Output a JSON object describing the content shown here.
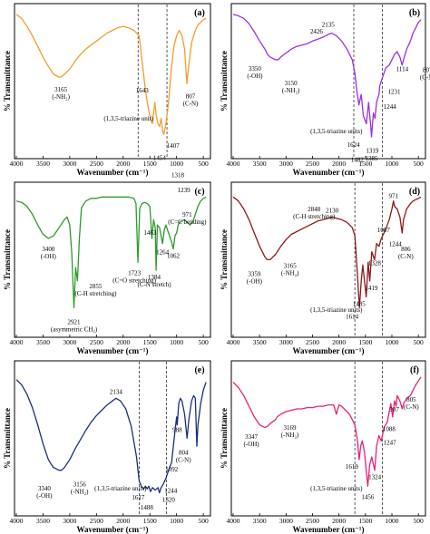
{
  "figure": {
    "xlabel": "Wavenumber (cm⁻¹)",
    "ylabel": "% Transmittance"
  },
  "chart_data": [
    {
      "type": "line",
      "panel": "(a)",
      "color": "#f39c2f",
      "xlabel": "Wavenumber (cm⁻¹)",
      "ylabel": "% Transmittance",
      "xlim": [
        4000,
        400
      ],
      "xticks": [
        4000,
        3500,
        3000,
        2500,
        2000,
        1500,
        1000,
        500
      ],
      "dashed_lines": [
        1720,
        1180
      ],
      "x": [
        4000,
        3900,
        3800,
        3700,
        3600,
        3500,
        3400,
        3300,
        3200,
        3165,
        3100,
        3000,
        2900,
        2800,
        2700,
        2600,
        2500,
        2400,
        2300,
        2200,
        2100,
        2000,
        1900,
        1800,
        1700,
        1643,
        1600,
        1550,
        1500,
        1454,
        1430,
        1407,
        1380,
        1350,
        1318,
        1290,
        1260,
        1239,
        1200,
        1150,
        1100,
        1050,
        1000,
        950,
        900,
        850,
        807,
        780,
        720,
        650,
        600,
        550,
        500,
        450
      ],
      "y": [
        96,
        93,
        87,
        80,
        72,
        64,
        57,
        51,
        49,
        49,
        51,
        55,
        61,
        66,
        70,
        73,
        76,
        79,
        82,
        84,
        86,
        87,
        86,
        84,
        80,
        60,
        45,
        30,
        20,
        14,
        22,
        30,
        20,
        14,
        12,
        18,
        8,
        6,
        14,
        30,
        55,
        72,
        80,
        84,
        80,
        70,
        44,
        55,
        75,
        84,
        88,
        90,
        92,
        93
      ],
      "peaks": [
        {
          "label": "3165\n(-NH₂)",
          "x": 3165
        },
        {
          "label": "1643",
          "x": 1643
        },
        {
          "label": "1454",
          "x": 1454
        },
        {
          "label": "1407",
          "x": 1407
        },
        {
          "label": "1318",
          "x": 1318
        },
        {
          "label": "1239",
          "x": 1239
        },
        {
          "label": "807\n(C-N)",
          "x": 807
        }
      ],
      "annotations": [
        "(1,3,5-triazine unit)"
      ]
    },
    {
      "type": "line",
      "panel": "(b)",
      "color": "#9b30e0",
      "xlabel": "Wavenumber (cm⁻¹)",
      "ylabel": "% Transmittance",
      "xlim": [
        4000,
        400
      ],
      "xticks": [
        4000,
        3500,
        3000,
        2500,
        2000,
        1500,
        1000,
        500
      ],
      "dashed_lines": [
        1720,
        1180
      ],
      "x": [
        4000,
        3900,
        3800,
        3700,
        3600,
        3500,
        3400,
        3350,
        3300,
        3200,
        3150,
        3100,
        3000,
        2900,
        2800,
        2700,
        2600,
        2500,
        2426,
        2300,
        2200,
        2135,
        2050,
        1950,
        1850,
        1750,
        1700,
        1660,
        1624,
        1580,
        1540,
        1482,
        1440,
        1400,
        1385,
        1350,
        1319,
        1290,
        1244,
        1231,
        1200,
        1150,
        1114,
        1050,
        1000,
        950,
        900,
        850,
        807,
        780,
        720,
        650,
        600,
        550,
        500,
        450
      ],
      "y": [
        96,
        95,
        93,
        89,
        83,
        76,
        70,
        66,
        64,
        62,
        62,
        64,
        67,
        70,
        72,
        73,
        74,
        76,
        77,
        79,
        81,
        82,
        80,
        76,
        70,
        62,
        52,
        38,
        28,
        36,
        20,
        14,
        30,
        12,
        4,
        22,
        18,
        30,
        36,
        42,
        46,
        52,
        56,
        58,
        62,
        66,
        68,
        64,
        58,
        62,
        70,
        76,
        82,
        86,
        90,
        92
      ],
      "peaks": [
        {
          "label": "3350\n(-OH)",
          "x": 3350
        },
        {
          "label": "3150\n(-NH₂)",
          "x": 3150
        },
        {
          "label": "2426",
          "x": 2426
        },
        {
          "label": "2135",
          "x": 2135
        },
        {
          "label": "1624",
          "x": 1624
        },
        {
          "label": "1482",
          "x": 1482
        },
        {
          "label": "1385",
          "x": 1385
        },
        {
          "label": "1319",
          "x": 1319
        },
        {
          "label": "1244",
          "x": 1244
        },
        {
          "label": "1231",
          "x": 1231
        },
        {
          "label": "1114",
          "x": 1114
        },
        {
          "label": "807\n(C-N)",
          "x": 807
        }
      ],
      "annotations": [
        "(1,3,5-triazine units)"
      ]
    },
    {
      "type": "line",
      "panel": "(c)",
      "color": "#2e9a2e",
      "xlabel": "Wavenumber (cm⁻¹)",
      "ylabel": "% Transmittance",
      "xlim": [
        4000,
        400
      ],
      "xticks": [
        4000,
        3500,
        3000,
        2500,
        2000,
        1500,
        1000,
        500
      ],
      "dashed_lines": [],
      "x": [
        4000,
        3900,
        3800,
        3700,
        3600,
        3500,
        3400,
        3300,
        3200,
        3100,
        3050,
        3000,
        2960,
        2921,
        2890,
        2855,
        2820,
        2780,
        2700,
        2600,
        2500,
        2400,
        2300,
        2200,
        2100,
        2000,
        1900,
        1800,
        1760,
        1723,
        1690,
        1650,
        1600,
        1550,
        1500,
        1463,
        1430,
        1400,
        1384,
        1360,
        1320,
        1300,
        1264,
        1230,
        1200,
        1150,
        1100,
        1062,
        1030,
        1000,
        971,
        940,
        900,
        850,
        800,
        750,
        700,
        650,
        600,
        550,
        500,
        450
      ],
      "y": [
        90,
        89,
        86,
        80,
        72,
        65,
        62,
        64,
        70,
        76,
        78,
        72,
        50,
        10,
        40,
        30,
        62,
        85,
        90,
        92,
        92,
        93,
        93,
        93,
        93,
        93,
        93,
        92,
        88,
        44,
        84,
        88,
        89,
        88,
        86,
        62,
        76,
        70,
        38,
        72,
        70,
        66,
        58,
        68,
        72,
        66,
        60,
        54,
        64,
        66,
        72,
        74,
        75,
        76,
        74,
        72,
        74,
        80,
        86,
        90,
        92,
        93
      ],
      "peaks": [
        {
          "label": "3400\n(-OH)",
          "x": 3400
        },
        {
          "label": "2921\n(asymmetric CH₂)",
          "x": 2921
        },
        {
          "label": "2855\n(C-H stretching)",
          "x": 2855
        },
        {
          "label": "1723\n(C=O stretching)",
          "x": 1723
        },
        {
          "label": "1463",
          "x": 1463
        },
        {
          "label": "1384\n(C-N stretch)",
          "x": 1384
        },
        {
          "label": "1264",
          "x": 1264
        },
        {
          "label": "1062",
          "x": 1062
        },
        {
          "label": "971\n(C=C bending)",
          "x": 971
        }
      ],
      "annotations": []
    },
    {
      "type": "line",
      "panel": "(d)",
      "color": "#8b1a1a",
      "xlabel": "Wavenumber (cm⁻¹)",
      "ylabel": "% Transmittance",
      "xlim": [
        4000,
        400
      ],
      "xticks": [
        4000,
        3500,
        3000,
        2500,
        2000,
        1500,
        1000,
        500
      ],
      "dashed_lines": [
        1700,
        1180
      ],
      "x": [
        4000,
        3900,
        3800,
        3700,
        3600,
        3500,
        3400,
        3359,
        3300,
        3200,
        3165,
        3100,
        3000,
        2900,
        2848,
        2800,
        2700,
        2600,
        2500,
        2400,
        2300,
        2200,
        2130,
        2050,
        1950,
        1850,
        1750,
        1700,
        1660,
        1614,
        1580,
        1550,
        1485,
        1450,
        1419,
        1380,
        1328,
        1290,
        1244,
        1200,
        1150,
        1087,
        1050,
        1000,
        971,
        950,
        900,
        850,
        806,
        780,
        720,
        650,
        600,
        550,
        500,
        450
      ],
      "y": [
        93,
        90,
        84,
        76,
        66,
        56,
        48,
        46,
        46,
        50,
        52,
        56,
        61,
        65,
        66,
        67,
        69,
        71,
        73,
        75,
        76,
        77,
        78,
        77,
        76,
        74,
        70,
        64,
        40,
        10,
        30,
        42,
        18,
        44,
        30,
        52,
        46,
        58,
        56,
        62,
        66,
        72,
        76,
        84,
        90,
        86,
        84,
        78,
        66,
        76,
        84,
        88,
        90,
        91,
        92,
        93
      ],
      "peaks": [
        {
          "label": "3359\n(-OH)",
          "x": 3359
        },
        {
          "label": "3165\n(-NH₂)",
          "x": 3165
        },
        {
          "label": "2848\n(C-H stretching)",
          "x": 2848
        },
        {
          "label": "2130",
          "x": 2130
        },
        {
          "label": "1614",
          "x": 1614
        },
        {
          "label": "1485",
          "x": 1485
        },
        {
          "label": "1419",
          "x": 1419
        },
        {
          "label": "1328",
          "x": 1328
        },
        {
          "label": "1244",
          "x": 1244
        },
        {
          "label": "1087",
          "x": 1087
        },
        {
          "label": "971",
          "x": 971
        },
        {
          "label": "806\n(C-N)",
          "x": 806
        }
      ],
      "annotations": [
        "(1,3,5-triazine units)"
      ]
    },
    {
      "type": "line",
      "panel": "(e)",
      "color": "#1c2f7a",
      "xlabel": "Wavenumber (cm⁻¹)",
      "ylabel": "% Transmittance",
      "xlim": [
        4000,
        400
      ],
      "xticks": [
        4000,
        3500,
        3000,
        2500,
        2000,
        1500,
        1000,
        500
      ],
      "dashed_lines": [
        1700,
        1190
      ],
      "x": [
        4000,
        3900,
        3800,
        3700,
        3600,
        3500,
        3400,
        3340,
        3300,
        3200,
        3156,
        3100,
        3000,
        2900,
        2800,
        2700,
        2600,
        2500,
        2400,
        2300,
        2200,
        2134,
        2050,
        1950,
        1850,
        1750,
        1700,
        1660,
        1617,
        1580,
        1550,
        1520,
        1488,
        1450,
        1400,
        1350,
        1320,
        1290,
        1244,
        1200,
        1150,
        1092,
        1050,
        1000,
        988,
        960,
        930,
        900,
        850,
        804,
        770,
        720,
        680,
        650,
        620,
        600,
        550,
        500,
        450
      ],
      "y": [
        90,
        86,
        79,
        69,
        56,
        42,
        30,
        26,
        24,
        22,
        22,
        24,
        30,
        38,
        45,
        52,
        58,
        63,
        67,
        71,
        74,
        76,
        74,
        68,
        55,
        32,
        14,
        10,
        8,
        10,
        8,
        10,
        6,
        9,
        7,
        9,
        5,
        9,
        12,
        16,
        22,
        28,
        44,
        62,
        56,
        72,
        76,
        74,
        64,
        46,
        60,
        74,
        78,
        76,
        40,
        56,
        72,
        82,
        88
      ],
      "peaks": [
        {
          "label": "3340\n(-OH)",
          "x": 3340
        },
        {
          "label": "3156\n(-NH₂)",
          "x": 3156
        },
        {
          "label": "2134",
          "x": 2134
        },
        {
          "label": "1617",
          "x": 1617
        },
        {
          "label": "1488",
          "x": 1488
        },
        {
          "label": "1320",
          "x": 1320
        },
        {
          "label": "1244",
          "x": 1244
        },
        {
          "label": "1092",
          "x": 1092
        },
        {
          "label": "988",
          "x": 988
        },
        {
          "label": "804\n(C-N)",
          "x": 804
        }
      ],
      "annotations": [
        "(1,3,5-triazine units)"
      ]
    },
    {
      "type": "line",
      "panel": "(f)",
      "color": "#e8207a",
      "xlabel": "Wavenumber (cm⁻¹)",
      "ylabel": "% Transmittance",
      "xlim": [
        4000,
        400
      ],
      "xticks": [
        4000,
        3500,
        3000,
        2500,
        2000,
        1500,
        1000,
        500
      ],
      "dashed_lines": [
        1700,
        1180
      ],
      "x": [
        4000,
        3900,
        3800,
        3700,
        3600,
        3500,
        3400,
        3347,
        3300,
        3200,
        3169,
        3100,
        3000,
        2900,
        2800,
        2700,
        2600,
        2500,
        2400,
        2300,
        2200,
        2100,
        2050,
        2000,
        1950,
        1900,
        1850,
        1800,
        1750,
        1700,
        1650,
        1619,
        1590,
        1560,
        1520,
        1456,
        1420,
        1380,
        1324,
        1290,
        1247,
        1200,
        1150,
        1088,
        1050,
        1020,
        987,
        950,
        920,
        900,
        850,
        805,
        780,
        720,
        650,
        600,
        550,
        500,
        450
      ],
      "y": [
        88,
        84,
        78,
        70,
        62,
        56,
        54,
        55,
        57,
        60,
        62,
        64,
        66,
        67,
        68,
        68,
        69,
        69,
        70,
        70,
        71,
        71,
        64,
        71,
        70,
        68,
        66,
        64,
        60,
        56,
        44,
        30,
        40,
        44,
        36,
        10,
        26,
        32,
        22,
        40,
        48,
        44,
        54,
        58,
        66,
        72,
        62,
        74,
        70,
        78,
        74,
        68,
        72,
        76,
        78,
        82,
        86,
        89,
        92
      ],
      "peaks": [
        {
          "label": "3347\n(-OH)",
          "x": 3347
        },
        {
          "label": "3169\n(-NH₂)",
          "x": 3169
        },
        {
          "label": "1619",
          "x": 1619
        },
        {
          "label": "1456",
          "x": 1456
        },
        {
          "label": "1324",
          "x": 1324
        },
        {
          "label": "1247",
          "x": 1247
        },
        {
          "label": "1088",
          "x": 1088
        },
        {
          "label": "987",
          "x": 987
        },
        {
          "label": "805\n(C-N)",
          "x": 805
        }
      ],
      "annotations": [
        "(1,3,5-triazine units)"
      ]
    }
  ]
}
